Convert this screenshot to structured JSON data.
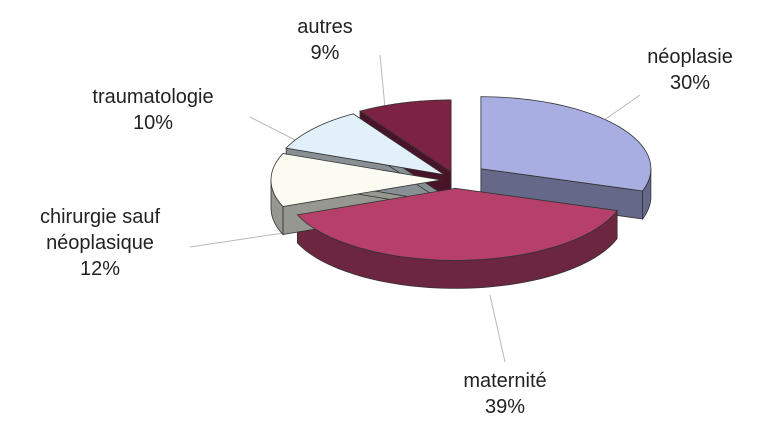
{
  "chart_data": {
    "type": "pie",
    "categories": [
      "néoplasie",
      "maternité",
      "chirurgie sauf néoplasique",
      "traumatologie",
      "autres"
    ],
    "values": [
      30,
      39,
      12,
      10,
      9
    ],
    "value_labels": [
      "30%",
      "39%",
      "12%",
      "10%",
      "9%"
    ],
    "colors": [
      "#a9aee2",
      "#b6406a",
      "#fbfbf2",
      "#e2f0fa",
      "#7c2242"
    ]
  }
}
